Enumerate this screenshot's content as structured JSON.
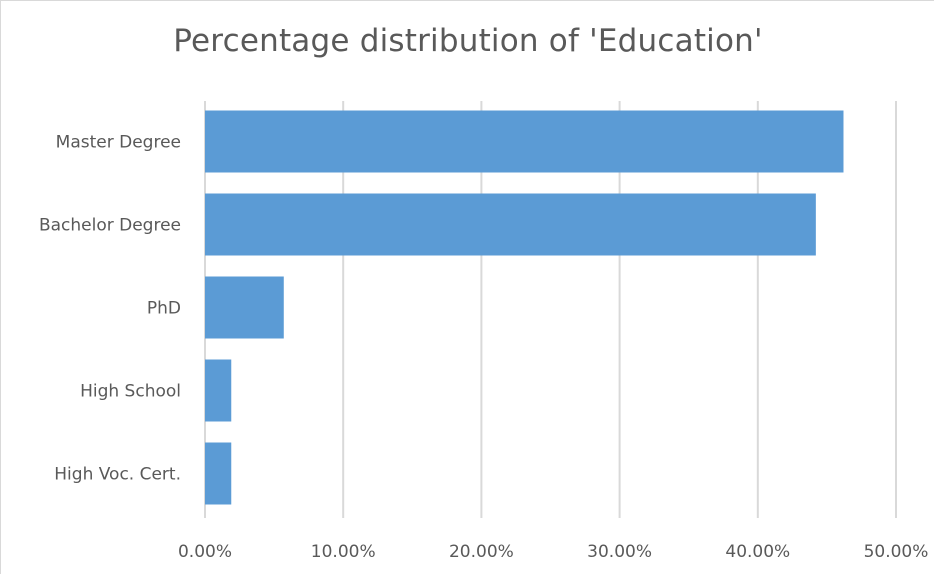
{
  "chart_data": {
    "type": "bar",
    "orientation": "horizontal",
    "title": "Percentage distribution of 'Education'",
    "categories": [
      "Master Degree",
      "Bachelor Degree",
      "PhD",
      "High School",
      "High Voc. Cert."
    ],
    "values": [
      46.2,
      44.2,
      5.7,
      1.9,
      1.9
    ],
    "value_unit": "%",
    "xlim": [
      0,
      50
    ],
    "xticks": [
      0,
      10,
      20,
      30,
      40,
      50
    ],
    "xtick_labels": [
      "0.00%",
      "10.00%",
      "20.00%",
      "30.00%",
      "40.00%",
      "50.00%"
    ],
    "grid": "vertical",
    "legend": "none",
    "bar_color": "#5b9bd5",
    "grid_color": "#d9d9d9"
  }
}
